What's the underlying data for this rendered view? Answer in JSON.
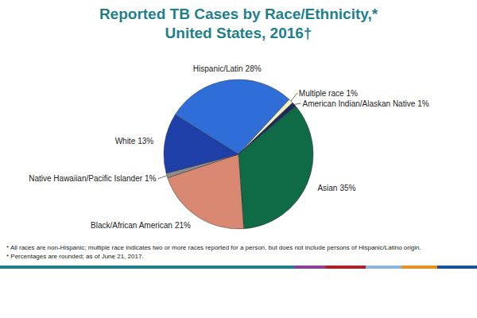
{
  "chart_data": {
    "type": "pie",
    "title": "Reported TB Cases by Race/Ethnicity,*",
    "subtitle": "United States, 2016†",
    "categories": [
      "Asian",
      "Black/African American",
      "Native Hawaiian/Pacific Islander",
      "White",
      "Hispanic/Latin",
      "Multiple race",
      "American Indian/Alaskan Native"
    ],
    "values": [
      35,
      21,
      1,
      13,
      28,
      1,
      1
    ],
    "value_labels": [
      "35%",
      "21%",
      "1%",
      "13%",
      "28%",
      "1%",
      "1%"
    ],
    "colors": [
      "#0e6b45",
      "#d98871",
      "#8c8c8c",
      "#1e3fa8",
      "#2f6ed8",
      "#f3efbf",
      "#1b2b5c"
    ],
    "data_labels": true,
    "annotations": [
      "* All races are non-Hispanic;  multiple race indicates two or more races reported for a person, but does not include persons of Hispanic/Latino origin.",
      "* Percentages are rounded; as of June 21, 2017."
    ]
  }
}
